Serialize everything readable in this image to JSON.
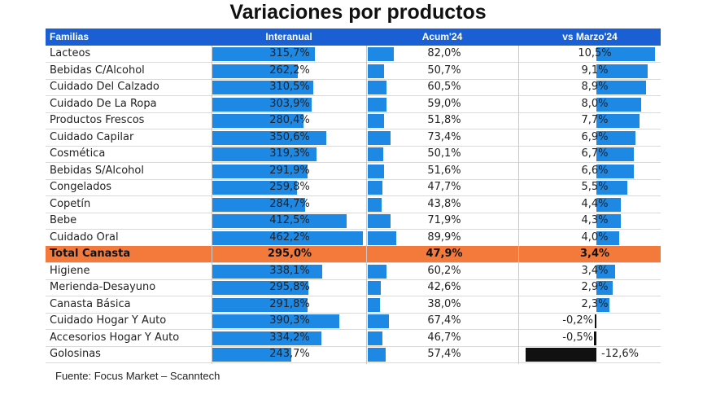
{
  "title": "Variaciones por productos",
  "source": "Fuente: Focus Market – Scanntech",
  "colors": {
    "header": "#1a5fd3",
    "bar": "#1e88e5",
    "negative_bar": "#111111",
    "total_row": "#f47a3c"
  },
  "chart_data": {
    "type": "table",
    "title": "Variaciones por productos",
    "columns": [
      "Familias",
      "Interanual",
      "Acum'24",
      "vs Marzo'24"
    ],
    "rows": [
      {
        "familia": "Lacteos",
        "interanual": 315.7,
        "acum24": 82.0,
        "vs_marzo24": 10.5
      },
      {
        "familia": "Bebidas C/Alcohol",
        "interanual": 262.2,
        "acum24": 50.7,
        "vs_marzo24": 9.1
      },
      {
        "familia": "Cuidado Del Calzado",
        "interanual": 310.5,
        "acum24": 60.5,
        "vs_marzo24": 8.9
      },
      {
        "familia": "Cuidado De La Ropa",
        "interanual": 303.9,
        "acum24": 59.0,
        "vs_marzo24": 8.0
      },
      {
        "familia": "Productos Frescos",
        "interanual": 280.4,
        "acum24": 51.8,
        "vs_marzo24": 7.7
      },
      {
        "familia": "Cuidado Capilar",
        "interanual": 350.6,
        "acum24": 73.4,
        "vs_marzo24": 6.9
      },
      {
        "familia": "Cosmética",
        "interanual": 319.3,
        "acum24": 50.1,
        "vs_marzo24": 6.7
      },
      {
        "familia": "Bebidas S/Alcohol",
        "interanual": 291.9,
        "acum24": 51.6,
        "vs_marzo24": 6.6
      },
      {
        "familia": "Congelados",
        "interanual": 259.8,
        "acum24": 47.7,
        "vs_marzo24": 5.5
      },
      {
        "familia": "Copetín",
        "interanual": 284.7,
        "acum24": 43.8,
        "vs_marzo24": 4.4
      },
      {
        "familia": "Bebe",
        "interanual": 412.5,
        "acum24": 71.9,
        "vs_marzo24": 4.3
      },
      {
        "familia": "Cuidado Oral",
        "interanual": 462.2,
        "acum24": 89.9,
        "vs_marzo24": 4.0
      },
      {
        "familia": "Total Canasta",
        "interanual": 295.0,
        "acum24": 47.9,
        "vs_marzo24": 3.4,
        "highlight": true
      },
      {
        "familia": "Higiene",
        "interanual": 338.1,
        "acum24": 60.2,
        "vs_marzo24": 3.4
      },
      {
        "familia": "Merienda-Desayuno",
        "interanual": 295.8,
        "acum24": 42.6,
        "vs_marzo24": 2.9
      },
      {
        "familia": "Canasta Básica",
        "interanual": 291.8,
        "acum24": 38.0,
        "vs_marzo24": 2.3
      },
      {
        "familia": "Cuidado Hogar Y Auto",
        "interanual": 390.3,
        "acum24": 67.4,
        "vs_marzo24": -0.2
      },
      {
        "familia": "Accesorios Hogar Y Auto",
        "interanual": 334.2,
        "acum24": 46.7,
        "vs_marzo24": -0.5
      },
      {
        "familia": "Golosinas",
        "interanual": 243.7,
        "acum24": 57.4,
        "vs_marzo24": -12.6
      }
    ]
  }
}
